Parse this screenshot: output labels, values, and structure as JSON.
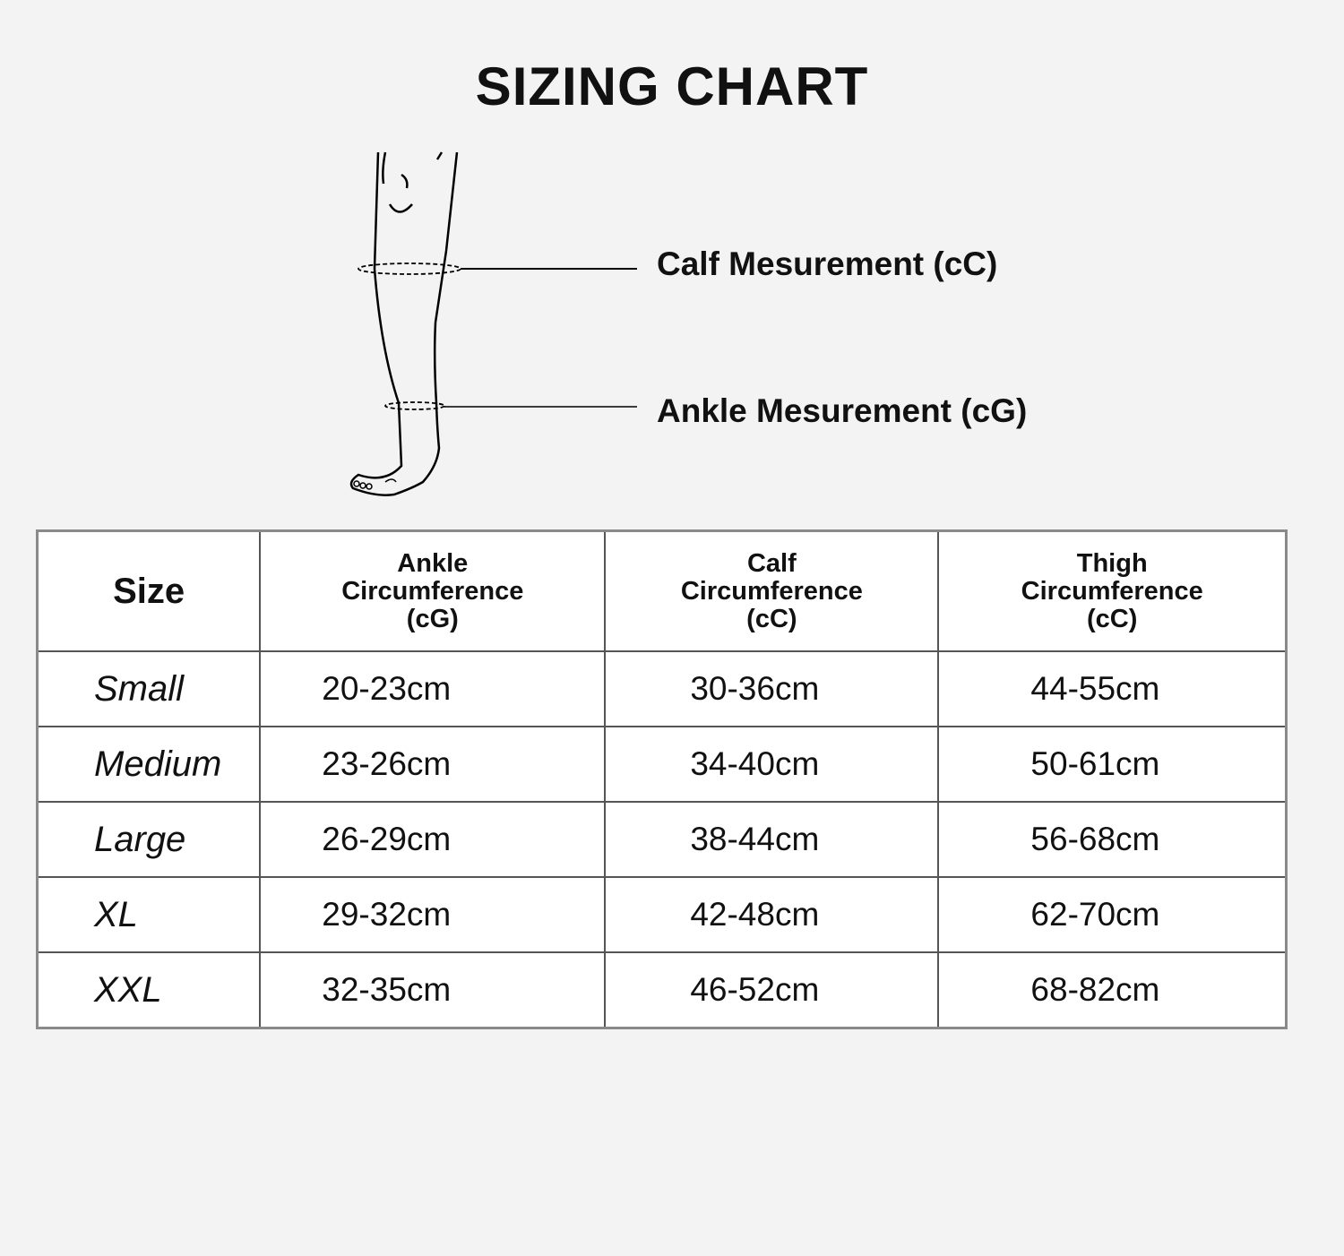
{
  "title": "SIZING CHART",
  "diagram": {
    "calf_label": "Calf Mesurement (cC)",
    "ankle_label": "Ankle Mesurement (cG)"
  },
  "table": {
    "headers": [
      {
        "lines": [
          "Size"
        ]
      },
      {
        "lines": [
          "Ankle",
          "Circumference",
          "(cG)"
        ]
      },
      {
        "lines": [
          "Calf",
          "Circumference",
          "(cC)"
        ]
      },
      {
        "lines": [
          "Thigh",
          "Circumference",
          "(cC)"
        ]
      }
    ],
    "rows": [
      [
        "Small",
        "20-23cm",
        "30-36cm",
        "44-55cm"
      ],
      [
        "Medium",
        "23-26cm",
        "34-40cm",
        "50-61cm"
      ],
      [
        "Large",
        "26-29cm",
        "38-44cm",
        "56-68cm"
      ],
      [
        "XL",
        "29-32cm",
        "42-48cm",
        "62-70cm"
      ],
      [
        "XXL",
        "32-35cm",
        "46-52cm",
        "68-82cm"
      ]
    ]
  }
}
